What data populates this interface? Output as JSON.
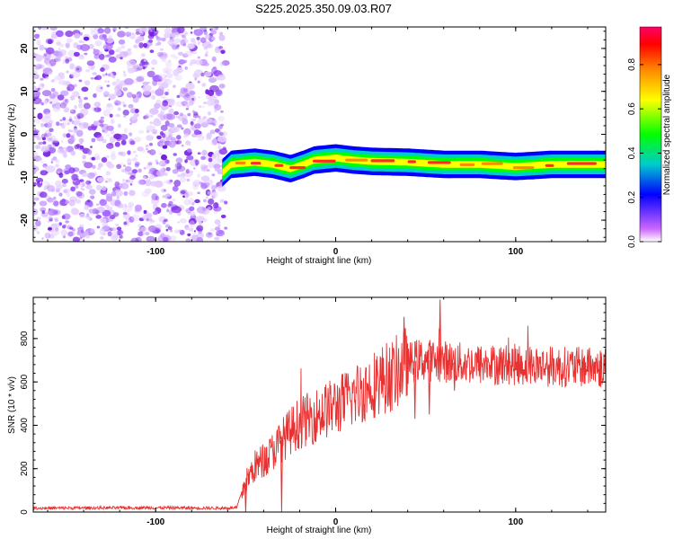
{
  "chart_data": [
    {
      "type": "heatmap",
      "title": "S225.2025.350.09.03.R07",
      "xlabel": "Height of straight line (km)",
      "ylabel": "Frequency (Hz)",
      "xlim": [
        -168,
        150
      ],
      "ylim": [
        -25,
        25
      ],
      "x_ticks": [
        -100,
        0,
        100
      ],
      "y_ticks": [
        -20,
        -10,
        0,
        10,
        20
      ],
      "noise_region_x": [
        -168,
        -63
      ],
      "signal_band": {
        "x_start": -63,
        "x_end": 150,
        "centerline": [
          {
            "x": -63,
            "y": -9
          },
          {
            "x": -58,
            "y": -7
          },
          {
            "x": -45,
            "y": -6.5
          },
          {
            "x": -35,
            "y": -7
          },
          {
            "x": -25,
            "y": -8
          },
          {
            "x": -18,
            "y": -7
          },
          {
            "x": -12,
            "y": -6
          },
          {
            "x": 0,
            "y": -5.5
          },
          {
            "x": 10,
            "y": -6
          },
          {
            "x": 20,
            "y": -6.3
          },
          {
            "x": 40,
            "y": -6.5
          },
          {
            "x": 60,
            "y": -7
          },
          {
            "x": 80,
            "y": -7
          },
          {
            "x": 100,
            "y": -7.5
          },
          {
            "x": 120,
            "y": -7
          },
          {
            "x": 150,
            "y": -7
          }
        ]
      },
      "colorbar": {
        "label": "Normalized spectral amplitude",
        "range": [
          0,
          0.97
        ],
        "ticks": [
          "0.0",
          "0.2",
          "0.4",
          "0.6",
          "0.8"
        ],
        "colors": [
          "#ffffff",
          "#cc66ff",
          "#0000ff",
          "#00cccc",
          "#00ff00",
          "#ffff00",
          "#ff8800",
          "#ff0000",
          "#ff0066"
        ]
      }
    },
    {
      "type": "line",
      "xlabel": "Height of straight line (km)",
      "ylabel": "SNR (10 * v/v)",
      "xlim": [
        -168,
        150
      ],
      "ylim": [
        0,
        990
      ],
      "x_ticks": [
        -100,
        0,
        100
      ],
      "y_ticks": [
        0,
        200,
        400,
        600,
        800
      ],
      "series": [
        {
          "name": "SNR",
          "color": "#e83232",
          "points": [
            [
              -168,
              18
            ],
            [
              -100,
              20
            ],
            [
              -62,
              18
            ],
            [
              -55,
              20
            ],
            [
              -51,
              120
            ],
            [
              -45,
              210
            ],
            [
              -38,
              250
            ],
            [
              -30,
              330
            ],
            [
              -22,
              400
            ],
            [
              -15,
              430
            ],
            [
              -5,
              470
            ],
            [
              5,
              510
            ],
            [
              15,
              560
            ],
            [
              25,
              610
            ],
            [
              32,
              630
            ],
            [
              38,
              680
            ],
            [
              45,
              700
            ],
            [
              55,
              700
            ],
            [
              65,
              690
            ],
            [
              80,
              680
            ],
            [
              100,
              680
            ],
            [
              125,
              670
            ],
            [
              150,
              665
            ]
          ],
          "spikes": [
            [
              -50,
              0
            ],
            [
              -30,
              0
            ],
            [
              38,
              900
            ],
            [
              58,
              980
            ],
            [
              44,
              430
            ],
            [
              52,
              450
            ],
            [
              66,
              560
            ],
            [
              140,
              750
            ]
          ]
        }
      ]
    }
  ]
}
